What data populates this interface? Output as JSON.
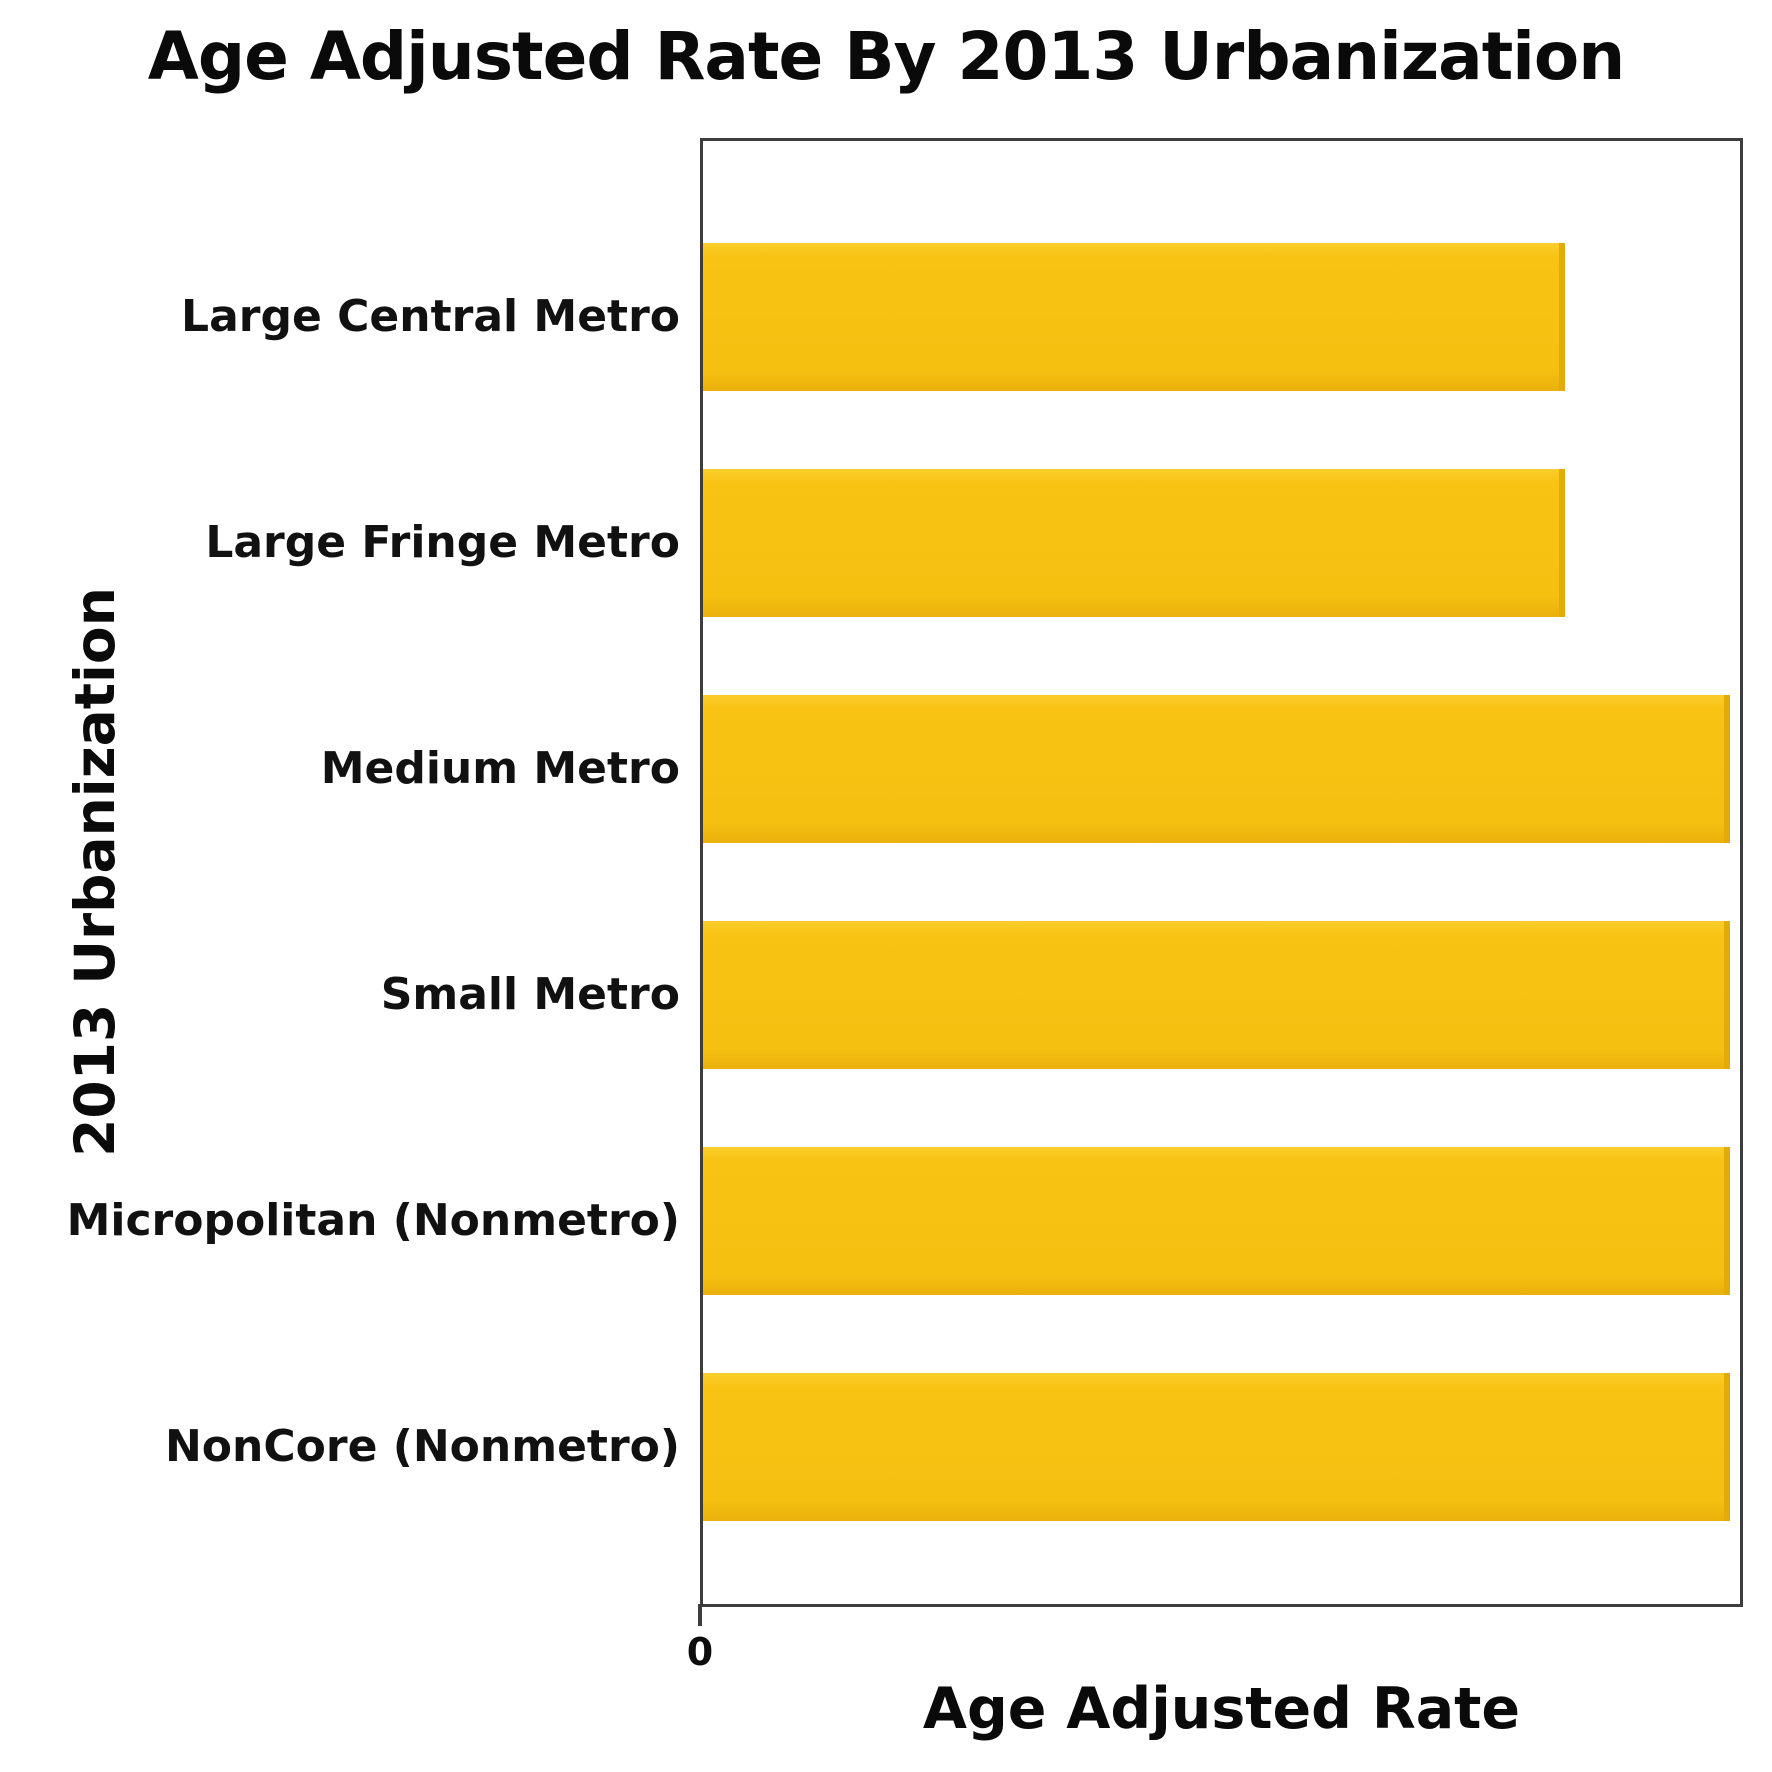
{
  "chart_data": {
    "type": "bar",
    "orientation": "horizontal",
    "title": "Age Adjusted Rate By 2013 Urbanization",
    "xlabel": "Age Adjusted Rate",
    "ylabel": "2013 Urbanization",
    "categories": [
      "Large Central Metro",
      "Large Fringe Metro",
      "Medium Metro",
      "Small Metro",
      "Micropolitan (Nonmetro)",
      "NonCore (Nonmetro)"
    ],
    "values": [
      0.84,
      0.84,
      1.0,
      1.0,
      1.0,
      1.0
    ],
    "value_units": "relative (longest bar = 1.0; axis shows no numeric labels besides 0)",
    "x_tick_labels": [
      "0"
    ],
    "xlim": [
      0,
      1.01
    ],
    "grid": false,
    "legend": null,
    "bar_color": "#F6C011",
    "bar_edge_color": "#E2AB0A",
    "plot_border_color": "#3D3D3D",
    "background_color": "#FFFFFF"
  }
}
